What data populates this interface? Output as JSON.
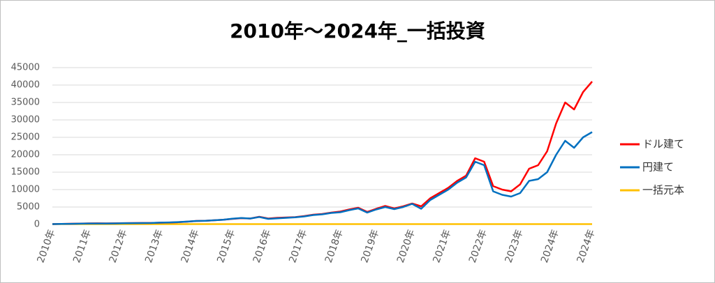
{
  "chart_data": {
    "type": "line",
    "title": "2010年～2024年_一括投資",
    "categories": [
      "2010年",
      null,
      null,
      null,
      "2011年",
      null,
      null,
      null,
      "2012年",
      null,
      null,
      null,
      "2013年",
      null,
      null,
      null,
      "2014年",
      null,
      null,
      null,
      "2015年",
      null,
      null,
      null,
      "2016年",
      null,
      null,
      null,
      "2017年",
      null,
      null,
      null,
      "2018年",
      null,
      null,
      null,
      "2019年",
      null,
      null,
      null,
      "2020年",
      null,
      null,
      null,
      "2021年",
      null,
      null,
      null,
      "2022年",
      null,
      null,
      null,
      "2023年",
      null,
      null,
      null,
      "2024年",
      null,
      null,
      null,
      "2024年"
    ],
    "series": [
      {
        "name": "ドル建て",
        "color": "#ff0000",
        "values": [
          100,
          150,
          200,
          250,
          300,
          320,
          300,
          330,
          380,
          400,
          420,
          430,
          500,
          550,
          650,
          800,
          1000,
          1050,
          1200,
          1350,
          1600,
          1800,
          1700,
          2200,
          1700,
          1900,
          2000,
          2100,
          2400,
          2800,
          3000,
          3400,
          3700,
          4300,
          4800,
          3600,
          4500,
          5300,
          4600,
          5200,
          6000,
          5200,
          7500,
          9000,
          10500,
          12500,
          14000,
          19000,
          18000,
          11000,
          10000,
          9500,
          11500,
          16000,
          17000,
          21000,
          29000,
          35000,
          33000,
          38000,
          41000
        ]
      },
      {
        "name": "円建て",
        "color": "#0070c0",
        "values": [
          100,
          140,
          180,
          220,
          270,
          290,
          270,
          300,
          350,
          370,
          400,
          420,
          520,
          580,
          680,
          820,
          1000,
          1050,
          1200,
          1350,
          1650,
          1850,
          1700,
          2150,
          1600,
          1750,
          1900,
          2050,
          2300,
          2700,
          2900,
          3300,
          3500,
          4100,
          4600,
          3400,
          4300,
          5000,
          4400,
          5000,
          5900,
          4500,
          7000,
          8500,
          10000,
          12000,
          13500,
          18000,
          17000,
          9500,
          8500,
          8000,
          9000,
          12500,
          13000,
          15000,
          20000,
          24000,
          22000,
          25000,
          26500
        ]
      },
      {
        "name": "一括元本",
        "color": "#ffc000",
        "values": [
          100,
          100,
          100,
          100,
          100,
          100,
          100,
          100,
          100,
          100,
          100,
          100,
          100,
          100,
          100,
          100,
          100,
          100,
          100,
          100,
          100,
          100,
          100,
          100,
          100,
          100,
          100,
          100,
          100,
          100,
          100,
          100,
          100,
          100,
          100,
          100,
          100,
          100,
          100,
          100,
          100,
          100,
          100,
          100,
          100,
          100,
          100,
          100,
          100,
          100,
          100,
          100,
          100,
          100,
          100,
          100,
          100,
          100,
          100,
          100,
          100
        ]
      }
    ],
    "ylim": [
      0,
      45000
    ],
    "yticks": [
      0,
      5000,
      10000,
      15000,
      20000,
      25000,
      30000,
      35000,
      40000,
      45000
    ],
    "grid": true,
    "legend": "right"
  }
}
